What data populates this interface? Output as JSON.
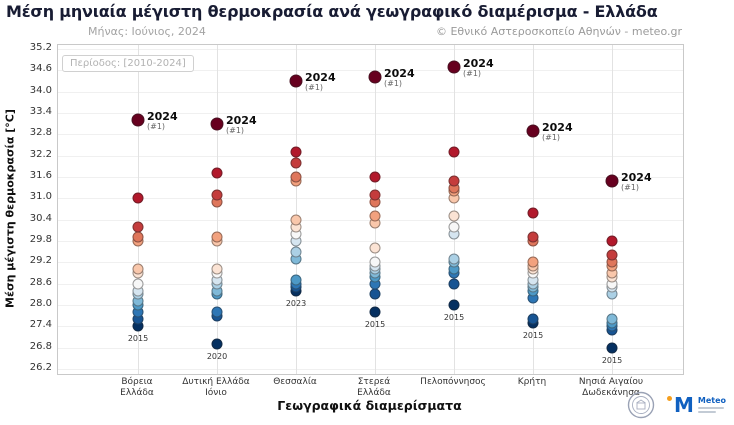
{
  "header": {
    "title": "Μέση μηνιαία μέγιστη θερμοκρασία ανά γεωγραφικό διαμέρισμα - Ελλάδα",
    "subtitle_left": "Μήνας: Ιούνιος, 2024",
    "subtitle_right": "© Εθνικό Αστεροσκοπείο Αθηνών - meteo.gr",
    "period_label": "Περίοδος: [2010-2024]"
  },
  "chart_data": {
    "type": "scatter",
    "title": "Μέση μηνιαία μέγιστη θερμοκρασία ανά γεωγραφικό διαμέρισμα - Ελλάδα",
    "xlabel": "Γεωγραφικά διαμερίσματα",
    "ylabel": "Μέση μέγιστη θερμοκρασία [°C]",
    "ylim": [
      26.2,
      35.2
    ],
    "ytick_step": 0.6,
    "grid": true,
    "legend": "none",
    "highlight_year": "2024",
    "point_colors_cold_to_hot": [
      "#053061",
      "#175493",
      "#2d76b5",
      "#4d99c6",
      "#7fb9d8",
      "#abd0e5",
      "#d5e5f0",
      "#f7f7f7",
      "#fbe3d4",
      "#f9c7ab",
      "#f2a17e",
      "#df765b",
      "#c43c3c",
      "#b2182b",
      "#67001f"
    ],
    "categories": [
      {
        "label": "Βόρεια Ελλάδα",
        "label_lines": [
          "Βόρεια",
          "Ελλάδα"
        ],
        "values_desc": [
          33.2,
          31.0,
          30.2,
          29.9,
          29.8,
          29.0,
          28.9,
          28.6,
          28.4,
          28.3,
          28.1,
          28.0,
          27.8,
          27.6,
          27.4
        ],
        "max_year": "2024",
        "max_rank": "(#1)",
        "min_year": "2015"
      },
      {
        "label": "Δυτική Ελλάδα Ιόνιο",
        "label_lines": [
          "Δυτική Ελλάδα",
          "Ιόνιο"
        ],
        "values_desc": [
          33.1,
          31.7,
          31.1,
          30.9,
          29.9,
          29.8,
          29.0,
          28.9,
          28.7,
          28.6,
          28.4,
          28.3,
          27.8,
          27.7,
          26.9
        ],
        "max_year": "2024",
        "max_rank": "(#1)",
        "min_year": "2020"
      },
      {
        "label": "Θεσσαλία",
        "label_lines": [
          "Θεσσαλία"
        ],
        "values_desc": [
          34.3,
          32.3,
          32.0,
          31.6,
          31.5,
          30.4,
          30.2,
          30.0,
          29.8,
          29.5,
          29.3,
          28.7,
          28.6,
          28.5,
          28.4
        ],
        "max_year": "2024",
        "max_rank": "(#1)",
        "min_year": "2023"
      },
      {
        "label": "Στερεά Ελλάδα",
        "label_lines": [
          "Στερεά",
          "Ελλάδα"
        ],
        "values_desc": [
          34.4,
          31.6,
          31.1,
          30.9,
          30.5,
          30.3,
          29.6,
          29.2,
          29.1,
          29.0,
          28.9,
          28.8,
          28.6,
          28.3,
          27.8
        ],
        "max_year": "2024",
        "max_rank": "(#1)",
        "min_year": "2015"
      },
      {
        "label": "Πελοπόννησος",
        "label_lines": [
          "Πελοπόννησος"
        ],
        "values_desc": [
          34.7,
          32.3,
          31.5,
          31.3,
          31.2,
          31.0,
          30.5,
          30.2,
          30.0,
          29.3,
          29.2,
          29.0,
          28.9,
          28.6,
          28.0
        ],
        "max_year": "2024",
        "max_rank": "(#1)",
        "min_year": "2015"
      },
      {
        "label": "Κρήτη",
        "label_lines": [
          "Κρήτη"
        ],
        "values_desc": [
          32.9,
          30.6,
          29.9,
          29.8,
          29.2,
          29.1,
          29.0,
          28.9,
          28.7,
          28.6,
          28.5,
          28.4,
          28.2,
          27.6,
          27.5
        ],
        "max_year": "2024",
        "max_rank": "(#1)",
        "min_year": "2015"
      },
      {
        "label": "Νησιά Αιγαίου Δωδεκάνησα",
        "label_lines": [
          "Νησιά Αιγαίου",
          "Δωδεκάνησα"
        ],
        "values_desc": [
          31.5,
          29.8,
          29.4,
          29.2,
          29.1,
          28.9,
          28.8,
          28.6,
          28.5,
          28.3,
          27.6,
          27.5,
          27.4,
          27.3,
          26.8
        ],
        "max_year": "2024",
        "max_rank": "(#1)",
        "min_year": "2015"
      }
    ]
  },
  "footer": {
    "meteo_logo_letter": "M",
    "meteo_label": "Meteo"
  }
}
